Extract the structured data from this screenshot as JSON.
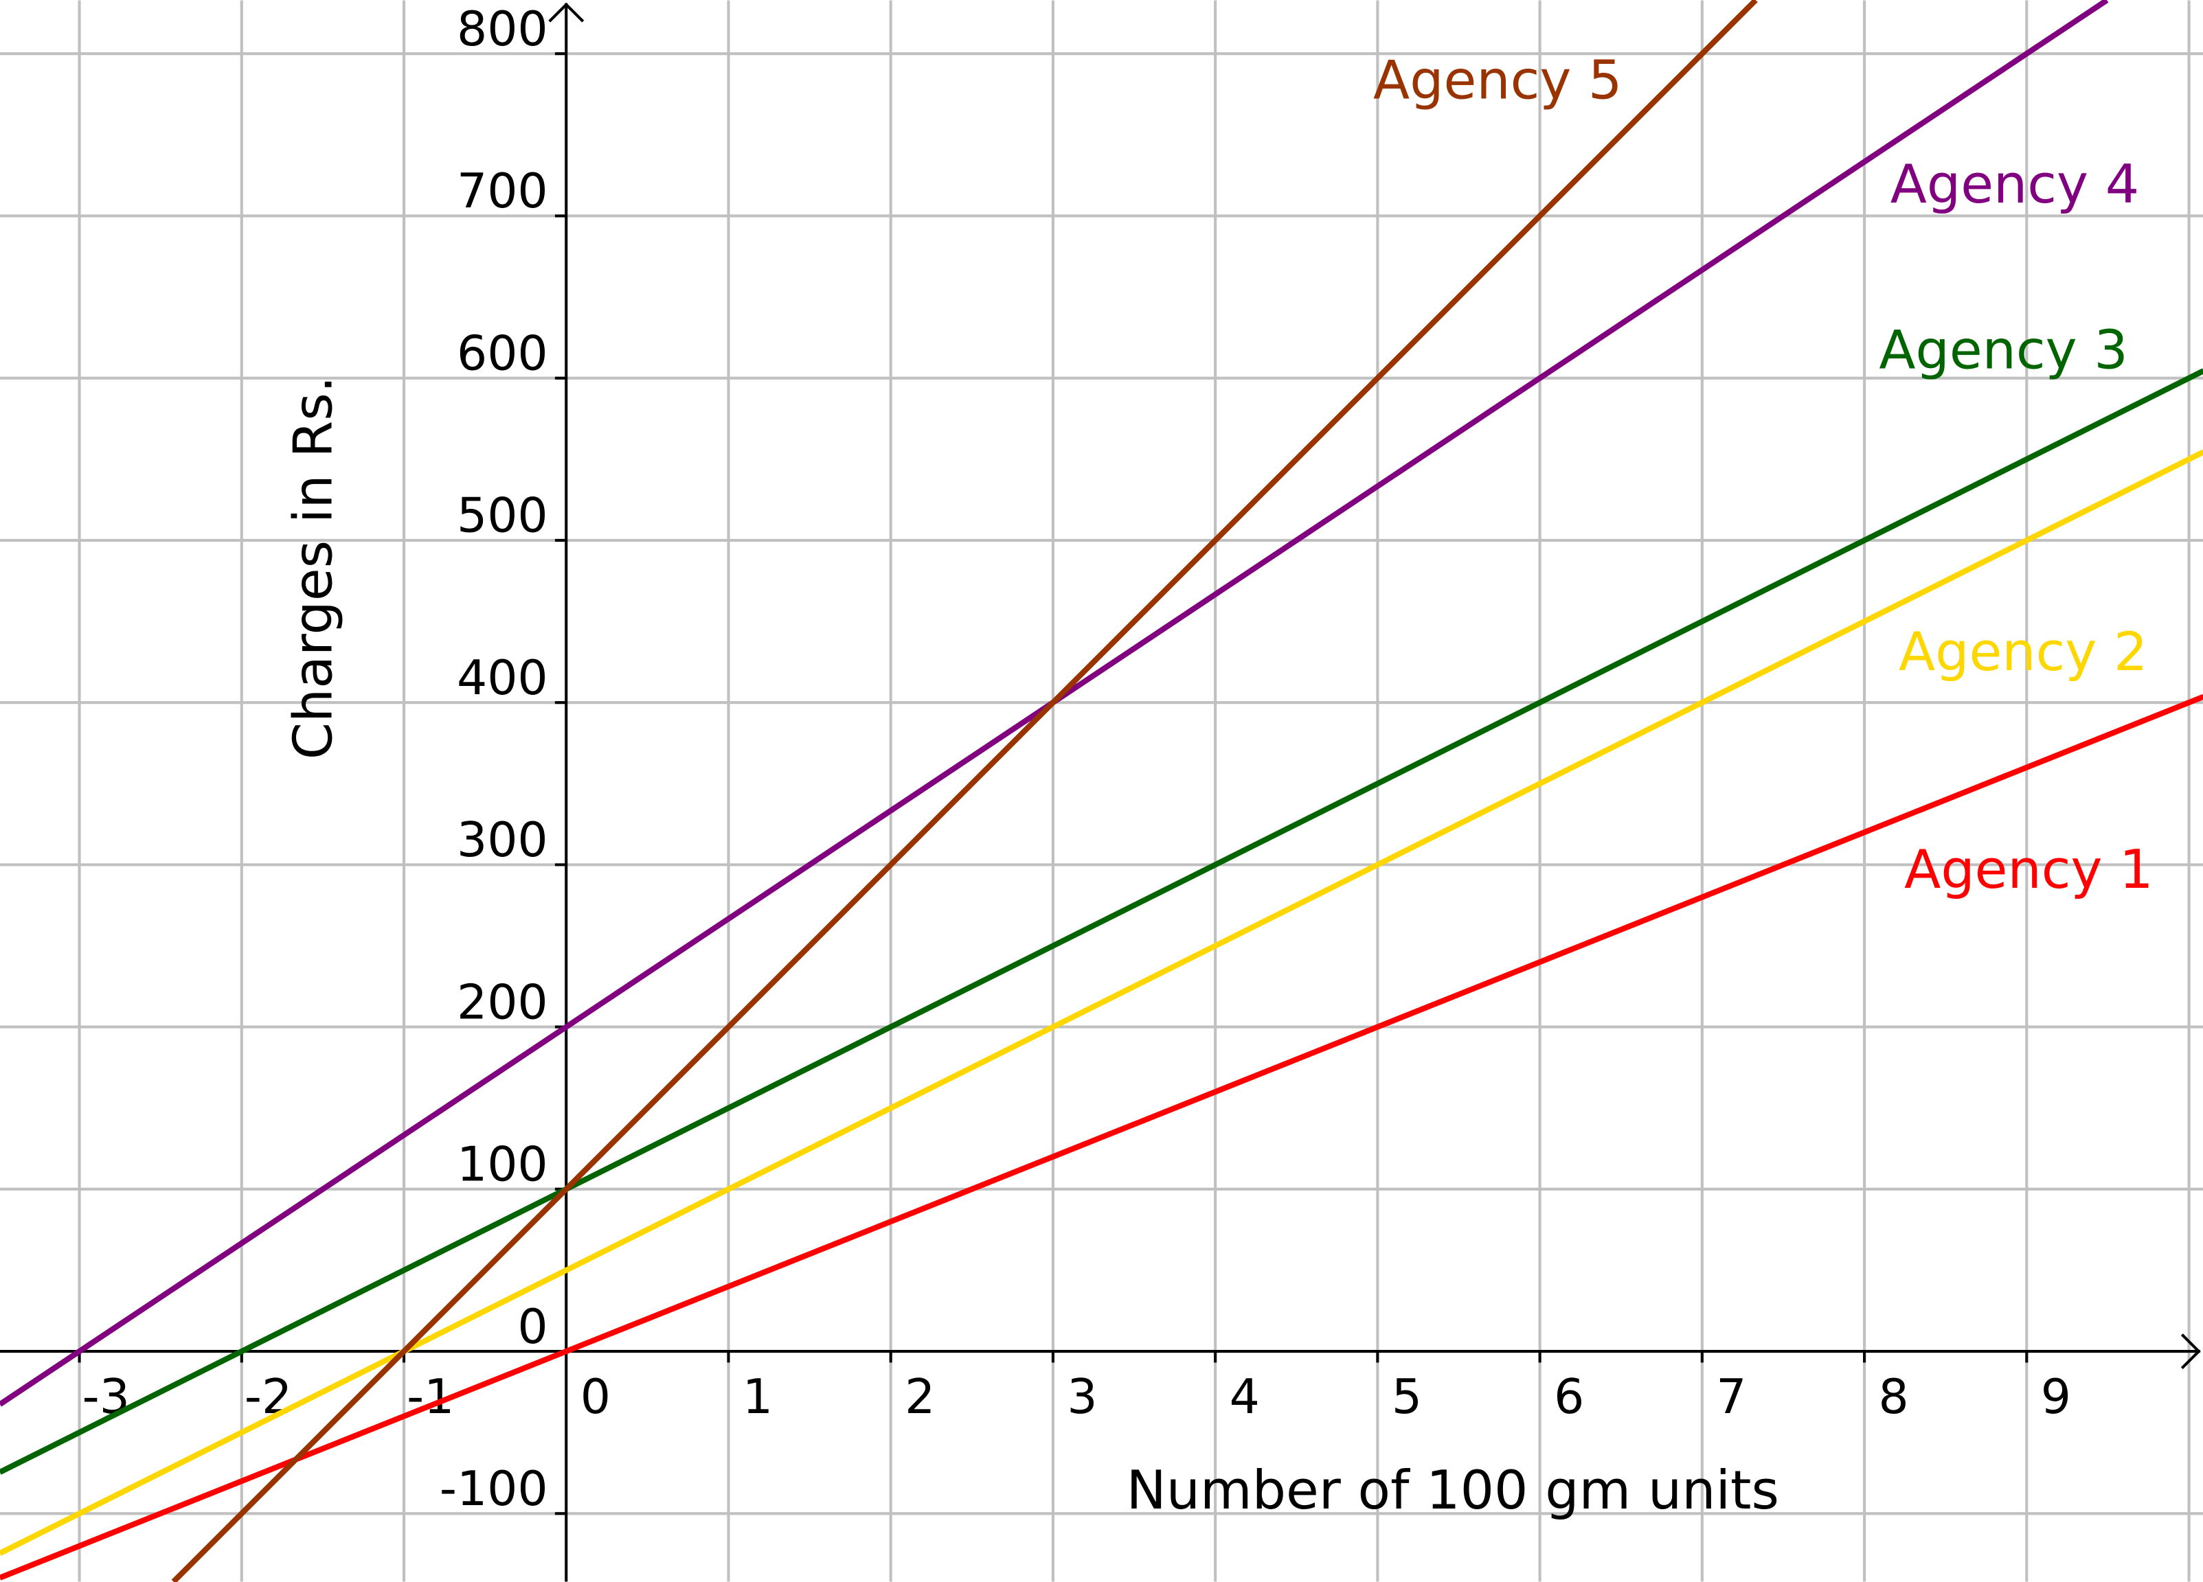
{
  "chart_data": {
    "type": "line",
    "title": "",
    "xlabel": "Number of 100 gm units",
    "ylabel": "Charges in Rs.",
    "xlim": [
      -3.49,
      10.09
    ],
    "ylim": [
      -142,
      833
    ],
    "grid": true,
    "x_ticks": [
      -3,
      -2,
      -1,
      0,
      1,
      2,
      3,
      4,
      5,
      6,
      7,
      8,
      9
    ],
    "y_ticks": [
      -100,
      0,
      100,
      200,
      300,
      400,
      500,
      600,
      700,
      800
    ],
    "series": [
      {
        "name": "Agency 1",
        "color": "#ff0000",
        "intercept": 0,
        "slope": 40
      },
      {
        "name": "Agency 2",
        "color": "#ffd700",
        "intercept": 50,
        "slope": 50
      },
      {
        "name": "Agency 3",
        "color": "#006400",
        "intercept": 100,
        "slope": 50
      },
      {
        "name": "Agency 4",
        "color": "#800080",
        "intercept": 200,
        "slope": 66.67
      },
      {
        "name": "Agency 5",
        "color": "#993300",
        "intercept": 100,
        "slope": 100
      }
    ]
  }
}
